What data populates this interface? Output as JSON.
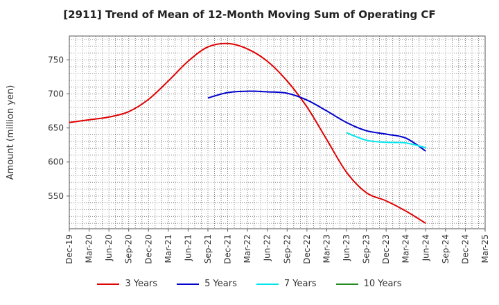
{
  "chart_data": {
    "type": "line",
    "title": "[2911]  Trend of Mean of 12-Month Moving Sum of Operating CF",
    "xlabel": "",
    "ylabel": "Amount (million yen)",
    "ylim": [
      502,
      785
    ],
    "yticks": [
      550,
      600,
      650,
      700,
      750
    ],
    "categories": [
      "Dec-19",
      "Mar-20",
      "Jun-20",
      "Sep-20",
      "Dec-20",
      "Mar-21",
      "Jun-21",
      "Sep-21",
      "Dec-21",
      "Mar-22",
      "Jun-22",
      "Sep-22",
      "Dec-22",
      "Mar-23",
      "Jun-23",
      "Sep-23",
      "Dec-23",
      "Mar-24",
      "Jun-24",
      "Sep-24",
      "Dec-24",
      "Mar-25"
    ],
    "grid": true,
    "legend_position": "bottom",
    "series": [
      {
        "name": "3 Years",
        "color": "#e00000",
        "values": [
          658,
          662,
          666,
          674,
          692,
          719,
          748,
          769,
          774,
          766,
          748,
          719,
          681,
          633,
          585,
          555,
          543,
          528,
          510,
          null,
          null,
          null
        ]
      },
      {
        "name": "5 Years",
        "color": "#0000cc",
        "values": [
          null,
          null,
          null,
          null,
          null,
          null,
          null,
          694,
          702,
          704,
          703,
          701,
          691,
          675,
          658,
          646,
          641,
          635,
          616,
          null,
          null,
          null
        ]
      },
      {
        "name": "7 Years",
        "color": "#00e5ee",
        "values": [
          null,
          null,
          null,
          null,
          null,
          null,
          null,
          null,
          null,
          null,
          null,
          null,
          null,
          null,
          643,
          632,
          629,
          628,
          621,
          null,
          null,
          null
        ]
      },
      {
        "name": "10 Years",
        "color": "#228b22",
        "values": [
          null,
          null,
          null,
          null,
          null,
          null,
          null,
          null,
          null,
          null,
          null,
          null,
          null,
          null,
          null,
          null,
          null,
          null,
          null,
          null,
          null,
          null
        ]
      }
    ]
  }
}
